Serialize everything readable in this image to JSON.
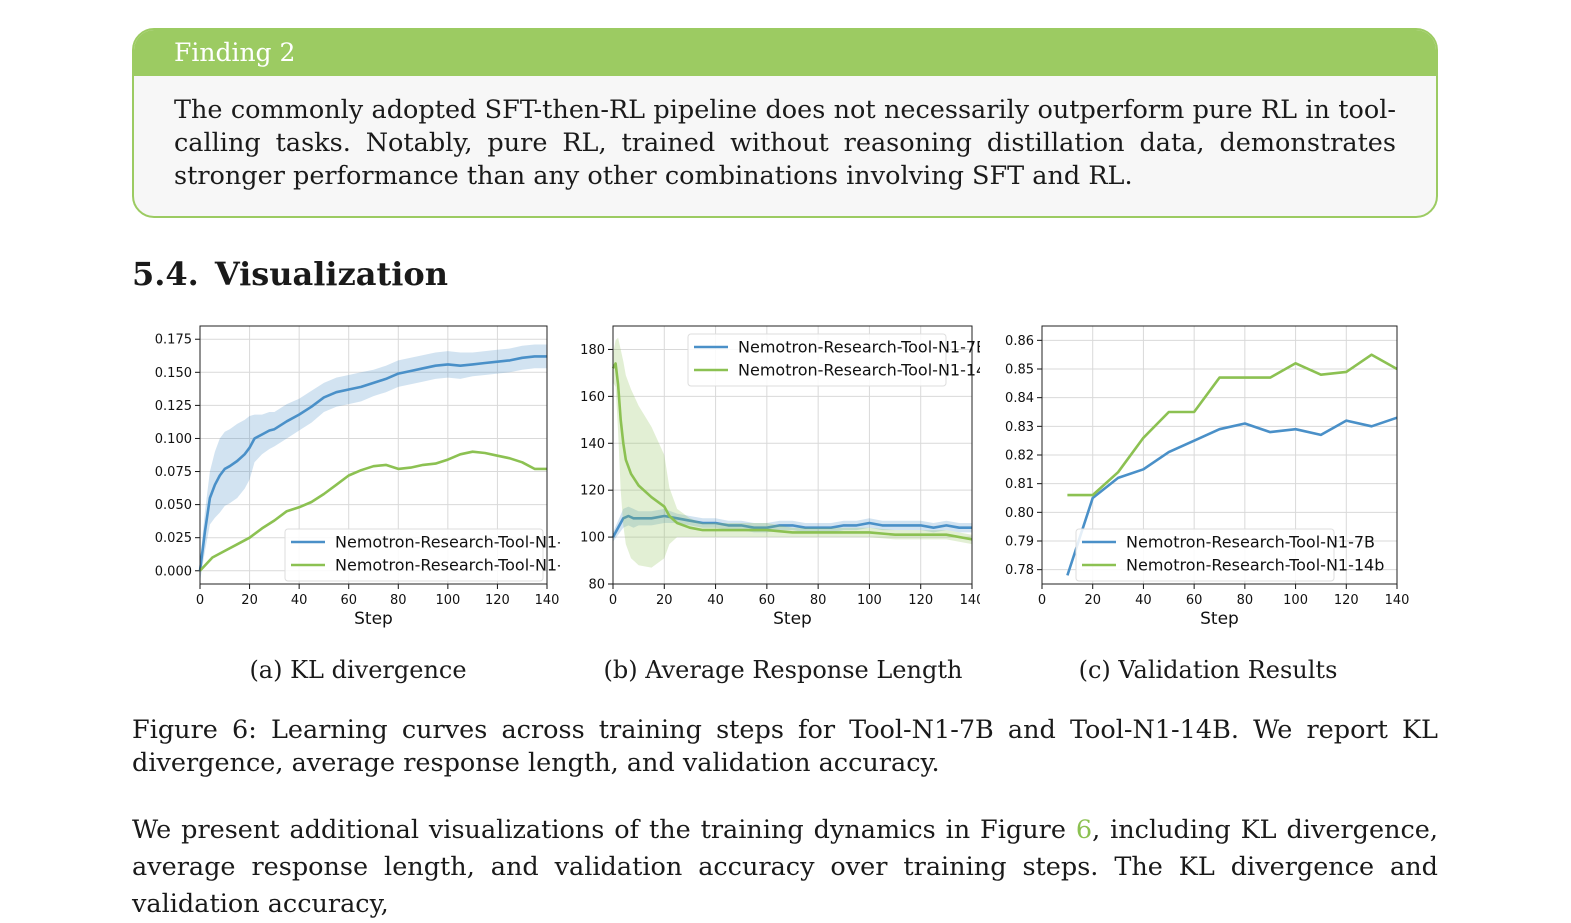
{
  "finding": {
    "title": "Finding 2",
    "text": "The commonly adopted SFT-then-RL pipeline does not necessarily outperform pure RL in tool-calling tasks. Notably, pure RL, trained without reasoning distillation data, demonstrates stronger performance than any other combinations involving SFT and RL."
  },
  "section": {
    "number": "5.4.",
    "title": "Visualization"
  },
  "subcaptions": [
    "(a) KL divergence",
    "(b) Average Response Length",
    "(c) Validation Results"
  ],
  "figure_caption": "Figure 6: Learning curves across training steps for Tool-N1-7B and Tool-N1-14B. We report KL divergence, average response length, and validation accuracy.",
  "paragraph": {
    "before": "We present additional visualizations of the training dynamics in Figure ",
    "ref": "6",
    "after": ", including KL divergence, average response length, and validation accuracy over training steps.  The KL divergence and validation accuracy,"
  },
  "colors": {
    "blue": "#4a90c8",
    "green": "#8cc152",
    "accent": "#9ccb62"
  },
  "chart_data": [
    {
      "type": "line",
      "xlabel": "Step",
      "ylabel": "",
      "xlim": [
        0,
        140
      ],
      "ylim": [
        -0.01,
        0.185
      ],
      "xticks": [
        0,
        20,
        40,
        60,
        80,
        100,
        120,
        140
      ],
      "yticks": [
        "0.000",
        "0.025",
        "0.050",
        "0.075",
        "0.100",
        "0.125",
        "0.150",
        "0.175"
      ],
      "grid": true,
      "legend_position": "lower-right",
      "series": [
        {
          "name": "Nemotron-Research-Tool-N1-7B",
          "color": "#4a90c8",
          "x": [
            0,
            2,
            4,
            6,
            8,
            10,
            12,
            15,
            18,
            20,
            22,
            25,
            28,
            30,
            35,
            40,
            45,
            50,
            55,
            60,
            65,
            70,
            75,
            80,
            85,
            90,
            95,
            100,
            105,
            110,
            115,
            120,
            125,
            130,
            135,
            140
          ],
          "y": [
            0.0,
            0.03,
            0.055,
            0.065,
            0.072,
            0.077,
            0.079,
            0.083,
            0.088,
            0.093,
            0.1,
            0.103,
            0.106,
            0.107,
            0.113,
            0.118,
            0.124,
            0.131,
            0.135,
            0.137,
            0.139,
            0.142,
            0.145,
            0.149,
            0.151,
            0.153,
            0.155,
            0.156,
            0.155,
            0.156,
            0.157,
            0.158,
            0.159,
            0.161,
            0.162,
            0.162
          ],
          "band": [
            0.008,
            0.015,
            0.02,
            0.025,
            0.028,
            0.028,
            0.028,
            0.028,
            0.026,
            0.024,
            0.018,
            0.015,
            0.014,
            0.013,
            0.013,
            0.012,
            0.012,
            0.011,
            0.011,
            0.011,
            0.011,
            0.01,
            0.01,
            0.01,
            0.01,
            0.01,
            0.01,
            0.01,
            0.01,
            0.009,
            0.009,
            0.009,
            0.009,
            0.009,
            0.009,
            0.009
          ]
        },
        {
          "name": "Nemotron-Research-Tool-N1-14b",
          "color": "#8cc152",
          "x": [
            0,
            5,
            10,
            15,
            20,
            25,
            30,
            35,
            40,
            45,
            50,
            55,
            60,
            65,
            70,
            75,
            80,
            85,
            90,
            95,
            100,
            105,
            110,
            115,
            120,
            125,
            130,
            135,
            140
          ],
          "y": [
            0.0,
            0.01,
            0.015,
            0.02,
            0.025,
            0.032,
            0.038,
            0.045,
            0.048,
            0.052,
            0.058,
            0.065,
            0.072,
            0.076,
            0.079,
            0.08,
            0.077,
            0.078,
            0.08,
            0.081,
            0.084,
            0.088,
            0.09,
            0.089,
            0.087,
            0.085,
            0.082,
            0.077,
            0.077
          ]
        }
      ]
    },
    {
      "type": "line",
      "xlabel": "Step",
      "ylabel": "",
      "xlim": [
        0,
        140
      ],
      "ylim": [
        80,
        190
      ],
      "xticks": [
        0,
        20,
        40,
        60,
        80,
        100,
        120,
        140
      ],
      "yticks": [
        "80",
        "100",
        "120",
        "140",
        "160",
        "180"
      ],
      "grid": true,
      "legend_position": "top-right",
      "series": [
        {
          "name": "Nemotron-Research-Tool-N1-7B",
          "color": "#4a90c8",
          "x": [
            0,
            2,
            4,
            6,
            8,
            10,
            15,
            20,
            25,
            30,
            35,
            40,
            45,
            50,
            55,
            60,
            65,
            70,
            75,
            80,
            85,
            90,
            95,
            100,
            105,
            110,
            115,
            120,
            125,
            130,
            135,
            140
          ],
          "y": [
            100,
            104,
            108,
            109,
            108,
            108,
            108,
            109,
            108,
            107,
            106,
            106,
            105,
            105,
            104,
            104,
            105,
            105,
            104,
            104,
            104,
            105,
            105,
            106,
            105,
            105,
            105,
            105,
            104,
            105,
            104,
            104
          ],
          "band": [
            2,
            3,
            4,
            4,
            4,
            3,
            3,
            3,
            2,
            2,
            2,
            2,
            2,
            2,
            2,
            2,
            2,
            2,
            2,
            2,
            2,
            2,
            2,
            2,
            2,
            2,
            2,
            2,
            2,
            2,
            2,
            2
          ]
        },
        {
          "name": "Nemotron-Research-Tool-N1-14b",
          "color": "#8cc152",
          "x": [
            0,
            1,
            2,
            3,
            4,
            5,
            7,
            10,
            15,
            20,
            22,
            25,
            30,
            35,
            40,
            50,
            60,
            70,
            80,
            90,
            100,
            110,
            120,
            130,
            140
          ],
          "y": [
            172,
            174,
            165,
            150,
            140,
            133,
            127,
            122,
            117,
            113,
            109,
            106,
            104,
            103,
            103,
            103,
            103,
            102,
            102,
            102,
            102,
            101,
            101,
            101,
            99
          ],
          "band": [
            6,
            10,
            20,
            30,
            35,
            36,
            36,
            34,
            30,
            22,
            12,
            6,
            4,
            3,
            3,
            3,
            3,
            2,
            2,
            2,
            2,
            2,
            2,
            2,
            2
          ]
        }
      ]
    },
    {
      "type": "line",
      "xlabel": "Step",
      "ylabel": "",
      "xlim": [
        0,
        140
      ],
      "ylim": [
        0.775,
        0.865
      ],
      "xticks": [
        0,
        20,
        40,
        60,
        80,
        100,
        120,
        140
      ],
      "yticks": [
        "0.78",
        "0.79",
        "0.80",
        "0.81",
        "0.82",
        "0.83",
        "0.84",
        "0.85",
        "0.86"
      ],
      "grid": true,
      "legend_position": "lower-right",
      "series": [
        {
          "name": "Nemotron-Research-Tool-N1-7B",
          "color": "#4a90c8",
          "x": [
            10,
            20,
            30,
            40,
            50,
            60,
            70,
            80,
            90,
            100,
            110,
            120,
            130,
            140
          ],
          "y": [
            0.778,
            0.805,
            0.812,
            0.815,
            0.821,
            0.825,
            0.829,
            0.831,
            0.828,
            0.829,
            0.827,
            0.832,
            0.83,
            0.833
          ]
        },
        {
          "name": "Nemotron-Research-Tool-N1-14b",
          "color": "#8cc152",
          "x": [
            10,
            20,
            30,
            40,
            50,
            60,
            70,
            80,
            90,
            100,
            110,
            120,
            130,
            140
          ],
          "y": [
            0.806,
            0.806,
            0.814,
            0.826,
            0.835,
            0.835,
            0.847,
            0.847,
            0.847,
            0.852,
            0.848,
            0.849,
            0.855,
            0.85
          ]
        }
      ]
    }
  ]
}
